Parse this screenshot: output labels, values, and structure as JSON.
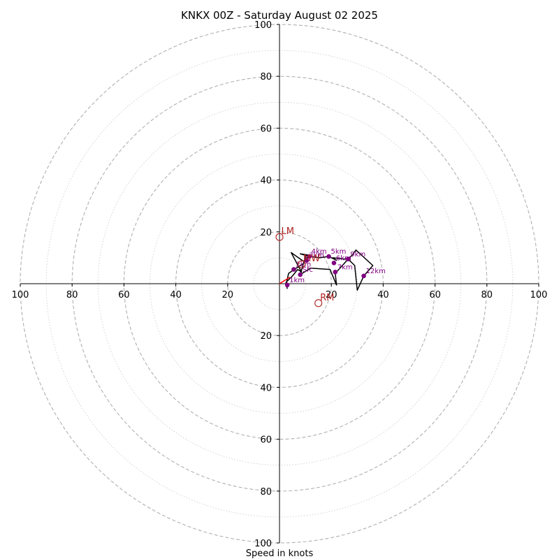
{
  "chart_data": {
    "type": "scatter",
    "title": "KNKX 00Z - Saturday August 02 2025",
    "xlabel": "Speed in knots",
    "ylabel": "",
    "xlim": [
      -100,
      100
    ],
    "ylim": [
      -100,
      100
    ],
    "rings_major": [
      20,
      40,
      60,
      80,
      100
    ],
    "rings_minor": [
      10,
      30,
      50,
      70,
      90
    ],
    "x_tick_labels": [
      "100",
      "80",
      "60",
      "40",
      "20",
      "20",
      "40",
      "60",
      "80",
      "100"
    ],
    "x_tick_values": [
      -100,
      -80,
      -60,
      -40,
      -20,
      20,
      40,
      60,
      80,
      100
    ],
    "y_tick_labels": [
      "100",
      "80",
      "60",
      "40",
      "20",
      "20",
      "40",
      "60",
      "80",
      "100"
    ],
    "y_tick_values": [
      100,
      80,
      60,
      40,
      20,
      -20,
      -40,
      -60,
      -80,
      -100
    ],
    "colors": {
      "trace": "#000000",
      "points": "#800080",
      "motion": "#b22222",
      "grid": "#b0b0b0",
      "shear": "#ff0000"
    },
    "wind_trace": [
      [
        3.0,
        -2.0
      ],
      [
        2.5,
        0.5
      ],
      [
        5.0,
        3.0
      ],
      [
        7.0,
        5.5
      ],
      [
        8.5,
        4.5
      ],
      [
        4.5,
        12.0
      ],
      [
        9.5,
        8.5
      ],
      [
        10.5,
        10.0
      ],
      [
        11.5,
        11.0
      ],
      [
        8.0,
        11.5
      ],
      [
        11.5,
        10.5
      ],
      [
        15.5,
        10.0
      ],
      [
        19.0,
        10.5
      ],
      [
        22.0,
        9.0
      ],
      [
        20.5,
        10.0
      ],
      [
        25.0,
        9.5
      ],
      [
        27.0,
        10.0
      ],
      [
        28.0,
        11.0
      ],
      [
        29.5,
        13.0
      ],
      [
        36.0,
        7.0
      ],
      [
        32.5,
        3.0
      ],
      [
        30.0,
        -2.5
      ],
      [
        29.0,
        7.0
      ],
      [
        26.5,
        9.5
      ],
      [
        21.5,
        4.0
      ],
      [
        22.0,
        -0.5
      ],
      [
        19.5,
        5.5
      ],
      [
        12.0,
        6.0
      ],
      [
        8.0,
        3.5
      ],
      [
        10.0,
        10.5
      ],
      [
        9.5,
        8.0
      ],
      [
        6.5,
        6.0
      ],
      [
        5.0,
        5.0
      ],
      [
        3.5,
        4.0
      ],
      [
        2.5,
        -0.5
      ]
    ],
    "points": [
      {
        "label": "1km",
        "u": 3.0,
        "v": -0.5
      },
      {
        "label": "Sfc",
        "u": 8.0,
        "v": 3.5
      },
      {
        "label": "2km",
        "u": 5.5,
        "v": 5.5
      },
      {
        "label": "3km",
        "u": 10.5,
        "v": 9.0
      },
      {
        "label": "4km",
        "u": 11.5,
        "v": 10.5
      },
      {
        "label": "5km",
        "u": 19.0,
        "v": 10.5
      },
      {
        "label": "6km",
        "u": 21.0,
        "v": 8.0
      },
      {
        "label": "7km",
        "u": 21.5,
        "v": 4.5
      },
      {
        "label": "9km",
        "u": 26.5,
        "v": 9.5
      },
      {
        "label": "12km",
        "u": 32.5,
        "v": 3.0
      }
    ],
    "motion_markers": [
      {
        "label": "LM",
        "u": 0.0,
        "v": 18.0
      },
      {
        "label": "RM",
        "u": 15.0,
        "v": -7.5
      },
      {
        "label": "MW",
        "u": 8.5,
        "v": 7.5
      }
    ],
    "shear_line": [
      [
        0.0,
        0.0
      ],
      [
        4.0,
        2.5
      ]
    ]
  }
}
